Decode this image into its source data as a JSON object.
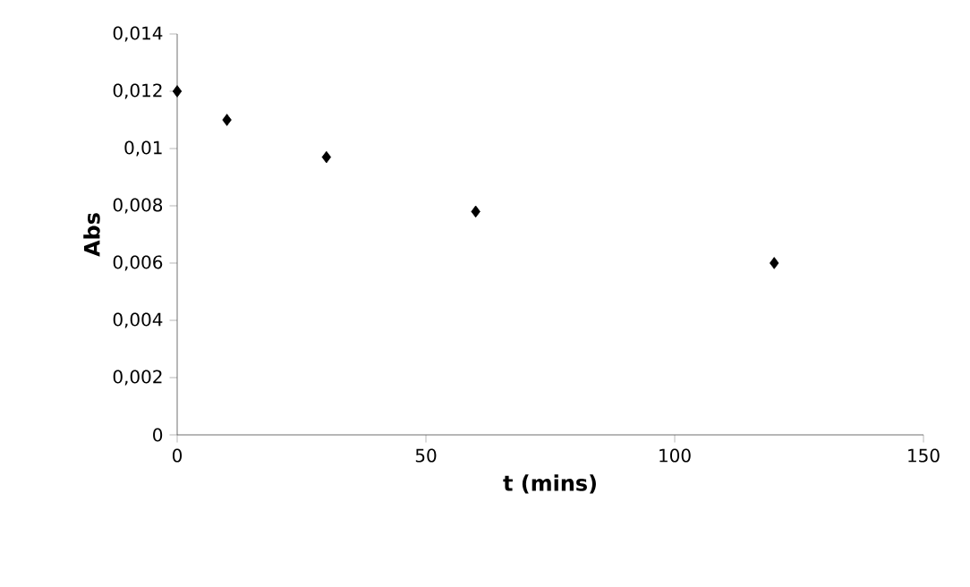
{
  "chart_data": {
    "type": "scatter",
    "xlabel": "t (mins)",
    "ylabel": "Abs",
    "x": [
      0,
      10,
      30,
      60,
      120
    ],
    "series": [
      {
        "color": "#000000",
        "values": [
          0.012,
          0.011,
          0.0097,
          0.0078,
          0.006
        ]
      }
    ],
    "marker": "diamond",
    "grid": false,
    "xlim": [
      0,
      150
    ],
    "xticks": [
      0,
      50,
      100,
      150
    ],
    "ylim": [
      0,
      0.014
    ],
    "yticks": [
      {
        "value": 0,
        "label": "0"
      },
      {
        "value": 0.002,
        "label": "0,002"
      },
      {
        "value": 0.004,
        "label": "0,004"
      },
      {
        "value": 0.006,
        "label": "0,006"
      },
      {
        "value": 0.008,
        "label": "0,008"
      },
      {
        "value": 0.01,
        "label": "0,01"
      },
      {
        "value": 0.012,
        "label": "0,012"
      },
      {
        "value": 0.014,
        "label": "0,014"
      }
    ]
  }
}
